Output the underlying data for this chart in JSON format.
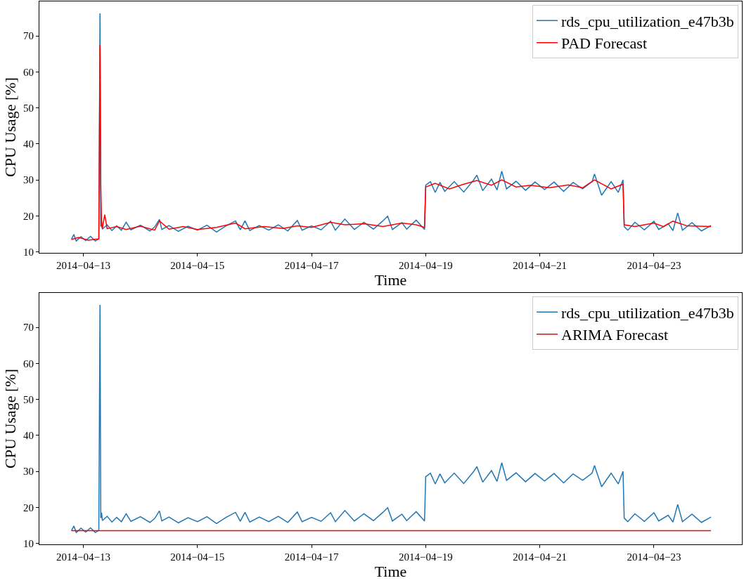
{
  "chart_data": [
    {
      "type": "line",
      "xlabel": "Time",
      "ylabel": "CPU Usage [%]",
      "xlim": [
        "2014-04-12T05:30",
        "2014-04-24T13:00"
      ],
      "ylim": [
        9.7,
        79.6
      ],
      "xticks": [
        {
          "value": "2014-04-13",
          "label": "2014−04−13"
        },
        {
          "value": "2014-04-15",
          "label": "2014−04−15"
        },
        {
          "value": "2014-04-17",
          "label": "2014−04−17"
        },
        {
          "value": "2014-04-19",
          "label": "2014−04−19"
        },
        {
          "value": "2014-04-21",
          "label": "2014−04−21"
        },
        {
          "value": "2014-04-23",
          "label": "2014−04−23"
        }
      ],
      "yticks": [
        10,
        20,
        30,
        40,
        50,
        60,
        70
      ],
      "grid": false,
      "legend": "top right",
      "marker": "none",
      "line_style": "solid",
      "series": [
        {
          "name": "rds_cpu_utilization_e47b3b",
          "color": "#1f77b4",
          "x": [
            "2014-04-12T19:00",
            "2014-04-12T20:00",
            "2014-04-12T21:00",
            "2014-04-12T23:00",
            "2014-04-13T01:00",
            "2014-04-13T03:00",
            "2014-04-13T05:00",
            "2014-04-13T06:30",
            "2014-04-13T07:00",
            "2014-04-13T07:20",
            "2014-04-13T07:40",
            "2014-04-13T08:00",
            "2014-04-13T10:00",
            "2014-04-13T12:00",
            "2014-04-13T14:00",
            "2014-04-13T16:00",
            "2014-04-13T18:00",
            "2014-04-13T20:00",
            "2014-04-14T00:00",
            "2014-04-14T04:00",
            "2014-04-14T06:00",
            "2014-04-14T08:00",
            "2014-04-14T09:00",
            "2014-04-14T12:00",
            "2014-04-14T16:00",
            "2014-04-14T20:00",
            "2014-04-15T00:00",
            "2014-04-15T04:00",
            "2014-04-15T08:00",
            "2014-04-15T12:00",
            "2014-04-15T16:00",
            "2014-04-15T18:00",
            "2014-04-15T20:00",
            "2014-04-15T22:00",
            "2014-04-16T02:00",
            "2014-04-16T06:00",
            "2014-04-16T10:00",
            "2014-04-16T14:00",
            "2014-04-16T18:00",
            "2014-04-16T20:00",
            "2014-04-17T00:00",
            "2014-04-17T04:00",
            "2014-04-17T08:00",
            "2014-04-17T10:00",
            "2014-04-17T14:00",
            "2014-04-17T18:00",
            "2014-04-17T22:00",
            "2014-04-18T02:00",
            "2014-04-18T06:00",
            "2014-04-18T08:00",
            "2014-04-18T10:00",
            "2014-04-18T14:00",
            "2014-04-18T16:00",
            "2014-04-18T20:00",
            "2014-04-18T23:30",
            "2014-04-19T00:00",
            "2014-04-19T02:00",
            "2014-04-19T04:00",
            "2014-04-19T06:00",
            "2014-04-19T08:00",
            "2014-04-19T12:00",
            "2014-04-19T16:00",
            "2014-04-19T20:00",
            "2014-04-19T21:30",
            "2014-04-20T00:00",
            "2014-04-20T03:40",
            "2014-04-20T06:00",
            "2014-04-20T08:00",
            "2014-04-20T10:00",
            "2014-04-20T14:00",
            "2014-04-20T18:00",
            "2014-04-20T22:00",
            "2014-04-21T02:00",
            "2014-04-21T06:00",
            "2014-04-21T10:00",
            "2014-04-21T14:00",
            "2014-04-21T18:00",
            "2014-04-21T22:00",
            "2014-04-21T23:00",
            "2014-04-22T02:00",
            "2014-04-22T06:00",
            "2014-04-22T09:00",
            "2014-04-22T11:00",
            "2014-04-22T11:30",
            "2014-04-22T13:00",
            "2014-04-22T16:00",
            "2014-04-22T20:00",
            "2014-04-23T00:00",
            "2014-04-23T02:00",
            "2014-04-23T06:00",
            "2014-04-23T08:00",
            "2014-04-23T10:00",
            "2014-04-23T12:00",
            "2014-04-23T16:00",
            "2014-04-23T20:00",
            "2014-04-24T00:00"
          ],
          "values": [
            13.5,
            14.8,
            13.0,
            14.2,
            13.1,
            14.3,
            13.0,
            13.6,
            76.3,
            17.0,
            18.5,
            16.3,
            17.5,
            15.9,
            17.2,
            16.0,
            18.2,
            16.1,
            17.4,
            15.8,
            16.9,
            19.0,
            16.2,
            17.3,
            15.7,
            17.1,
            16.0,
            17.4,
            15.5,
            17.2,
            18.6,
            16.1,
            18.6,
            15.9,
            17.3,
            16.0,
            17.5,
            15.8,
            18.7,
            16.0,
            17.2,
            16.1,
            18.5,
            16.0,
            19.1,
            16.2,
            18.2,
            16.3,
            18.6,
            19.9,
            16.2,
            18.1,
            16.3,
            18.8,
            16.2,
            28.5,
            29.5,
            26.5,
            29.3,
            26.8,
            29.5,
            26.6,
            29.8,
            31.3,
            27.0,
            30.2,
            27.2,
            32.4,
            27.5,
            29.6,
            27.1,
            29.4,
            27.3,
            29.4,
            26.8,
            29.3,
            27.5,
            29.5,
            31.6,
            25.7,
            29.5,
            26.5,
            30.0,
            17.0,
            16.0,
            18.2,
            16.1,
            18.5,
            16.2,
            17.8,
            15.9,
            20.8,
            16.0,
            18.1,
            15.8,
            17.3
          ]
        },
        {
          "name": "PAD Forecast",
          "color": "#ff0000",
          "x": [
            "2014-04-12T19:00",
            "2014-04-12T22:00",
            "2014-04-13T02:00",
            "2014-04-13T06:30",
            "2014-04-13T07:00",
            "2014-04-13T07:20",
            "2014-04-13T07:40",
            "2014-04-13T08:00",
            "2014-04-13T09:00",
            "2014-04-13T10:00",
            "2014-04-13T14:00",
            "2014-04-13T18:00",
            "2014-04-14T00:00",
            "2014-04-14T06:00",
            "2014-04-14T08:00",
            "2014-04-14T12:00",
            "2014-04-14T18:00",
            "2014-04-15T00:00",
            "2014-04-15T08:00",
            "2014-04-15T16:00",
            "2014-04-15T20:00",
            "2014-04-16T04:00",
            "2014-04-16T12:00",
            "2014-04-16T18:00",
            "2014-04-17T00:00",
            "2014-04-17T08:00",
            "2014-04-17T14:00",
            "2014-04-17T22:00",
            "2014-04-18T06:00",
            "2014-04-18T14:00",
            "2014-04-18T20:00",
            "2014-04-18T23:30",
            "2014-04-19T00:00",
            "2014-04-19T04:00",
            "2014-04-19T10:00",
            "2014-04-19T16:00",
            "2014-04-19T21:30",
            "2014-04-20T03:40",
            "2014-04-20T08:00",
            "2014-04-20T14:00",
            "2014-04-20T20:00",
            "2014-04-21T04:00",
            "2014-04-21T12:00",
            "2014-04-21T18:00",
            "2014-04-21T23:00",
            "2014-04-22T06:00",
            "2014-04-22T11:00",
            "2014-04-22T11:30",
            "2014-04-22T16:00",
            "2014-04-23T00:00",
            "2014-04-23T04:00",
            "2014-04-23T08:00",
            "2014-04-23T14:00",
            "2014-04-24T00:00"
          ],
          "values": [
            13.4,
            14.0,
            13.2,
            13.6,
            67.4,
            28.4,
            17.5,
            16.5,
            20.3,
            16.4,
            17.0,
            16.2,
            17.1,
            16.0,
            18.6,
            16.3,
            17.0,
            16.2,
            16.8,
            18.0,
            16.4,
            17.0,
            16.5,
            17.2,
            16.8,
            18.2,
            17.5,
            17.8,
            17.0,
            18.0,
            17.5,
            16.8,
            28.0,
            29.0,
            27.5,
            28.8,
            29.8,
            28.5,
            30.0,
            28.0,
            28.5,
            27.8,
            28.6,
            27.8,
            30.0,
            27.5,
            28.8,
            17.5,
            17.0,
            18.0,
            17.0,
            18.5,
            17.2,
            17.0
          ]
        }
      ]
    },
    {
      "type": "line",
      "xlabel": "Time",
      "ylabel": "CPU Usage [%]",
      "xlim": [
        "2014-04-12T05:30",
        "2014-04-24T13:00"
      ],
      "ylim": [
        9.7,
        79.6
      ],
      "xticks": [
        {
          "value": "2014-04-13",
          "label": "2014−04−13"
        },
        {
          "value": "2014-04-15",
          "label": "2014−04−15"
        },
        {
          "value": "2014-04-17",
          "label": "2014−04−17"
        },
        {
          "value": "2014-04-19",
          "label": "2014−04−19"
        },
        {
          "value": "2014-04-21",
          "label": "2014−04−21"
        },
        {
          "value": "2014-04-23",
          "label": "2014−04−23"
        }
      ],
      "yticks": [
        10,
        20,
        30,
        40,
        50,
        60,
        70
      ],
      "grid": false,
      "legend": "top right",
      "marker": "none",
      "line_style": "solid",
      "series": [
        {
          "name": "rds_cpu_utilization_e47b3b",
          "color": "#1f77b4",
          "x": [
            "2014-04-12T19:00",
            "2014-04-12T20:00",
            "2014-04-12T21:00",
            "2014-04-12T23:00",
            "2014-04-13T01:00",
            "2014-04-13T03:00",
            "2014-04-13T05:00",
            "2014-04-13T06:30",
            "2014-04-13T07:00",
            "2014-04-13T07:20",
            "2014-04-13T07:40",
            "2014-04-13T08:00",
            "2014-04-13T10:00",
            "2014-04-13T12:00",
            "2014-04-13T14:00",
            "2014-04-13T16:00",
            "2014-04-13T18:00",
            "2014-04-13T20:00",
            "2014-04-14T00:00",
            "2014-04-14T04:00",
            "2014-04-14T06:00",
            "2014-04-14T08:00",
            "2014-04-14T09:00",
            "2014-04-14T12:00",
            "2014-04-14T16:00",
            "2014-04-14T20:00",
            "2014-04-15T00:00",
            "2014-04-15T04:00",
            "2014-04-15T08:00",
            "2014-04-15T12:00",
            "2014-04-15T16:00",
            "2014-04-15T18:00",
            "2014-04-15T20:00",
            "2014-04-15T22:00",
            "2014-04-16T02:00",
            "2014-04-16T06:00",
            "2014-04-16T10:00",
            "2014-04-16T14:00",
            "2014-04-16T18:00",
            "2014-04-16T20:00",
            "2014-04-17T00:00",
            "2014-04-17T04:00",
            "2014-04-17T08:00",
            "2014-04-17T10:00",
            "2014-04-17T14:00",
            "2014-04-17T18:00",
            "2014-04-17T22:00",
            "2014-04-18T02:00",
            "2014-04-18T06:00",
            "2014-04-18T08:00",
            "2014-04-18T10:00",
            "2014-04-18T14:00",
            "2014-04-18T16:00",
            "2014-04-18T20:00",
            "2014-04-18T23:30",
            "2014-04-19T00:00",
            "2014-04-19T02:00",
            "2014-04-19T04:00",
            "2014-04-19T06:00",
            "2014-04-19T08:00",
            "2014-04-19T12:00",
            "2014-04-19T16:00",
            "2014-04-19T20:00",
            "2014-04-19T21:30",
            "2014-04-20T00:00",
            "2014-04-20T03:40",
            "2014-04-20T06:00",
            "2014-04-20T08:00",
            "2014-04-20T10:00",
            "2014-04-20T14:00",
            "2014-04-20T18:00",
            "2014-04-20T22:00",
            "2014-04-21T02:00",
            "2014-04-21T06:00",
            "2014-04-21T10:00",
            "2014-04-21T14:00",
            "2014-04-21T18:00",
            "2014-04-21T22:00",
            "2014-04-21T23:00",
            "2014-04-22T02:00",
            "2014-04-22T06:00",
            "2014-04-22T09:00",
            "2014-04-22T11:00",
            "2014-04-22T11:30",
            "2014-04-22T13:00",
            "2014-04-22T16:00",
            "2014-04-22T20:00",
            "2014-04-23T00:00",
            "2014-04-23T02:00",
            "2014-04-23T06:00",
            "2014-04-23T08:00",
            "2014-04-23T10:00",
            "2014-04-23T12:00",
            "2014-04-23T16:00",
            "2014-04-23T20:00",
            "2014-04-24T00:00"
          ],
          "values": [
            13.5,
            14.8,
            13.0,
            14.2,
            13.1,
            14.3,
            13.0,
            13.6,
            76.3,
            17.0,
            18.5,
            16.3,
            17.5,
            15.9,
            17.2,
            16.0,
            18.2,
            16.1,
            17.4,
            15.8,
            16.9,
            19.0,
            16.2,
            17.3,
            15.7,
            17.1,
            16.0,
            17.4,
            15.5,
            17.2,
            18.6,
            16.1,
            18.6,
            15.9,
            17.3,
            16.0,
            17.5,
            15.8,
            18.7,
            16.0,
            17.2,
            16.1,
            18.5,
            16.0,
            19.1,
            16.2,
            18.2,
            16.3,
            18.6,
            19.9,
            16.2,
            18.1,
            16.3,
            18.8,
            16.2,
            28.5,
            29.5,
            26.5,
            29.3,
            26.8,
            29.5,
            26.6,
            29.8,
            31.3,
            27.0,
            30.2,
            27.2,
            32.4,
            27.5,
            29.6,
            27.1,
            29.4,
            27.3,
            29.4,
            26.8,
            29.3,
            27.5,
            29.5,
            31.6,
            25.7,
            29.5,
            26.5,
            30.0,
            17.0,
            16.0,
            18.2,
            16.1,
            18.5,
            16.2,
            17.8,
            15.9,
            20.8,
            16.0,
            18.1,
            15.8,
            17.3
          ]
        },
        {
          "name": "ARIMA Forecast",
          "color": "#ff0000",
          "x": [
            "2014-04-12T19:00",
            "2014-04-13T12:00",
            "2014-04-14T12:00",
            "2014-04-15T12:00",
            "2014-04-16T12:00",
            "2014-04-17T12:00",
            "2014-04-18T12:00",
            "2014-04-19T12:00",
            "2014-04-20T12:00",
            "2014-04-21T12:00",
            "2014-04-22T12:00",
            "2014-04-23T12:00",
            "2014-04-24T00:00"
          ],
          "values": [
            13.5,
            13.5,
            13.5,
            13.5,
            13.5,
            13.5,
            13.5,
            13.5,
            13.5,
            13.5,
            13.5,
            13.5,
            13.5
          ]
        }
      ]
    }
  ]
}
